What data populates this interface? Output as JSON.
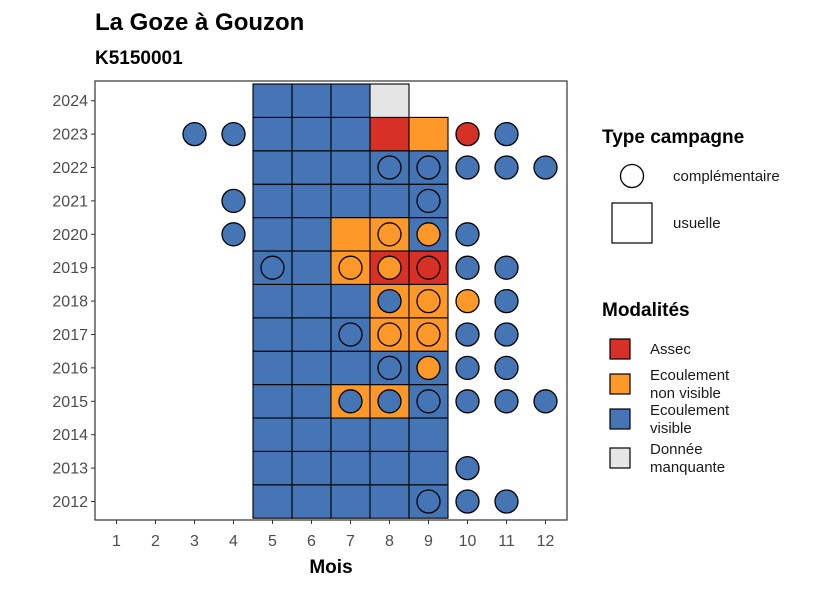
{
  "chart_data": {
    "type": "heatmap",
    "title": "La Goze à Gouzon",
    "subtitle": "K5150001",
    "xlabel": "Mois",
    "ylabel": "",
    "x_ticks": [
      1,
      2,
      3,
      4,
      5,
      6,
      7,
      8,
      9,
      10,
      11,
      12
    ],
    "y_ticks": [
      2012,
      2013,
      2014,
      2015,
      2016,
      2017,
      2018,
      2019,
      2020,
      2021,
      2022,
      2023,
      2024
    ],
    "grid": false,
    "colors": {
      "assec": "#d73027",
      "ecoulement_non_visible": "#fe9929",
      "ecoulement_visible": "#4575b4",
      "donnee_manquante": "#e5e5e5"
    },
    "legend_shape": {
      "title": "Type campagne",
      "items": [
        {
          "label": "complémentaire",
          "shape": "circle"
        },
        {
          "label": "usuelle",
          "shape": "square"
        }
      ]
    },
    "legend_color": {
      "title": "Modalités",
      "items": [
        {
          "key": "assec",
          "lines": [
            "Assec"
          ]
        },
        {
          "key": "ecoulement_non_visible",
          "lines": [
            "Ecoulement",
            "non visible"
          ]
        },
        {
          "key": "ecoulement_visible",
          "lines": [
            "Ecoulement",
            "visible"
          ]
        },
        {
          "key": "donnee_manquante",
          "lines": [
            "Donnée",
            "manquante"
          ]
        }
      ]
    },
    "usuelle": [
      {
        "year": 2012,
        "months": [
          "ecoulement_visible",
          "ecoulement_visible",
          "ecoulement_visible",
          "ecoulement_visible",
          "ecoulement_visible"
        ]
      },
      {
        "year": 2013,
        "months": [
          "ecoulement_visible",
          "ecoulement_visible",
          "ecoulement_visible",
          "ecoulement_visible",
          "ecoulement_visible"
        ]
      },
      {
        "year": 2014,
        "months": [
          "ecoulement_visible",
          "ecoulement_visible",
          "ecoulement_visible",
          "ecoulement_visible",
          "ecoulement_visible"
        ]
      },
      {
        "year": 2015,
        "months": [
          "ecoulement_visible",
          "ecoulement_visible",
          "ecoulement_non_visible",
          "ecoulement_non_visible",
          "ecoulement_visible"
        ]
      },
      {
        "year": 2016,
        "months": [
          "ecoulement_visible",
          "ecoulement_visible",
          "ecoulement_visible",
          "ecoulement_visible",
          "ecoulement_visible"
        ]
      },
      {
        "year": 2017,
        "months": [
          "ecoulement_visible",
          "ecoulement_visible",
          "ecoulement_visible",
          "ecoulement_non_visible",
          "ecoulement_non_visible"
        ]
      },
      {
        "year": 2018,
        "months": [
          "ecoulement_visible",
          "ecoulement_visible",
          "ecoulement_visible",
          "ecoulement_non_visible",
          "ecoulement_non_visible"
        ]
      },
      {
        "year": 2019,
        "months": [
          "ecoulement_visible",
          "ecoulement_visible",
          "ecoulement_non_visible",
          "assec",
          "assec"
        ]
      },
      {
        "year": 2020,
        "months": [
          "ecoulement_visible",
          "ecoulement_visible",
          "ecoulement_non_visible",
          "ecoulement_non_visible",
          "ecoulement_visible"
        ]
      },
      {
        "year": 2021,
        "months": [
          "ecoulement_visible",
          "ecoulement_visible",
          "ecoulement_visible",
          "ecoulement_visible",
          "ecoulement_visible"
        ]
      },
      {
        "year": 2022,
        "months": [
          "ecoulement_visible",
          "ecoulement_visible",
          "ecoulement_visible",
          "ecoulement_visible",
          "ecoulement_visible"
        ]
      },
      {
        "year": 2023,
        "months": [
          "ecoulement_visible",
          "ecoulement_visible",
          "ecoulement_visible",
          "assec",
          "ecoulement_non_visible"
        ]
      },
      {
        "year": 2024,
        "months": [
          "ecoulement_visible",
          "ecoulement_visible",
          "ecoulement_visible",
          "donnee_manquante",
          null
        ]
      }
    ],
    "usuelle_start_month": 5,
    "complementaire": [
      {
        "year": 2023,
        "month": 3,
        "mod": "ecoulement_visible"
      },
      {
        "year": 2023,
        "month": 4,
        "mod": "ecoulement_visible"
      },
      {
        "year": 2023,
        "month": 10,
        "mod": "assec"
      },
      {
        "year": 2023,
        "month": 11,
        "mod": "ecoulement_visible"
      },
      {
        "year": 2022,
        "month": 8,
        "mod": "ecoulement_visible"
      },
      {
        "year": 2022,
        "month": 9,
        "mod": "ecoulement_visible"
      },
      {
        "year": 2022,
        "month": 10,
        "mod": "ecoulement_visible"
      },
      {
        "year": 2022,
        "month": 11,
        "mod": "ecoulement_visible"
      },
      {
        "year": 2022,
        "month": 12,
        "mod": "ecoulement_visible"
      },
      {
        "year": 2021,
        "month": 4,
        "mod": "ecoulement_visible"
      },
      {
        "year": 2021,
        "month": 9,
        "mod": "ecoulement_visible"
      },
      {
        "year": 2020,
        "month": 4,
        "mod": "ecoulement_visible"
      },
      {
        "year": 2020,
        "month": 8,
        "mod": "ecoulement_non_visible"
      },
      {
        "year": 2020,
        "month": 9,
        "mod": "ecoulement_non_visible"
      },
      {
        "year": 2020,
        "month": 10,
        "mod": "ecoulement_visible"
      },
      {
        "year": 2019,
        "month": 5,
        "mod": "ecoulement_visible"
      },
      {
        "year": 2019,
        "month": 7,
        "mod": "ecoulement_non_visible"
      },
      {
        "year": 2019,
        "month": 8,
        "mod": "ecoulement_non_visible"
      },
      {
        "year": 2019,
        "month": 9,
        "mod": "assec"
      },
      {
        "year": 2019,
        "month": 10,
        "mod": "ecoulement_visible"
      },
      {
        "year": 2019,
        "month": 11,
        "mod": "ecoulement_visible"
      },
      {
        "year": 2018,
        "month": 8,
        "mod": "ecoulement_visible"
      },
      {
        "year": 2018,
        "month": 9,
        "mod": "ecoulement_non_visible"
      },
      {
        "year": 2018,
        "month": 10,
        "mod": "ecoulement_non_visible"
      },
      {
        "year": 2018,
        "month": 11,
        "mod": "ecoulement_visible"
      },
      {
        "year": 2017,
        "month": 7,
        "mod": "ecoulement_visible"
      },
      {
        "year": 2017,
        "month": 8,
        "mod": "ecoulement_non_visible"
      },
      {
        "year": 2017,
        "month": 9,
        "mod": "ecoulement_non_visible"
      },
      {
        "year": 2017,
        "month": 10,
        "mod": "ecoulement_visible"
      },
      {
        "year": 2017,
        "month": 11,
        "mod": "ecoulement_visible"
      },
      {
        "year": 2016,
        "month": 8,
        "mod": "ecoulement_visible"
      },
      {
        "year": 2016,
        "month": 9,
        "mod": "ecoulement_non_visible"
      },
      {
        "year": 2016,
        "month": 10,
        "mod": "ecoulement_visible"
      },
      {
        "year": 2016,
        "month": 11,
        "mod": "ecoulement_visible"
      },
      {
        "year": 2015,
        "month": 7,
        "mod": "ecoulement_visible"
      },
      {
        "year": 2015,
        "month": 8,
        "mod": "ecoulement_visible"
      },
      {
        "year": 2015,
        "month": 9,
        "mod": "ecoulement_visible"
      },
      {
        "year": 2015,
        "month": 10,
        "mod": "ecoulement_visible"
      },
      {
        "year": 2015,
        "month": 11,
        "mod": "ecoulement_visible"
      },
      {
        "year": 2015,
        "month": 12,
        "mod": "ecoulement_visible"
      },
      {
        "year": 2013,
        "month": 10,
        "mod": "ecoulement_visible"
      },
      {
        "year": 2012,
        "month": 9,
        "mod": "ecoulement_visible"
      },
      {
        "year": 2012,
        "month": 10,
        "mod": "ecoulement_visible"
      },
      {
        "year": 2012,
        "month": 11,
        "mod": "ecoulement_visible"
      }
    ]
  }
}
